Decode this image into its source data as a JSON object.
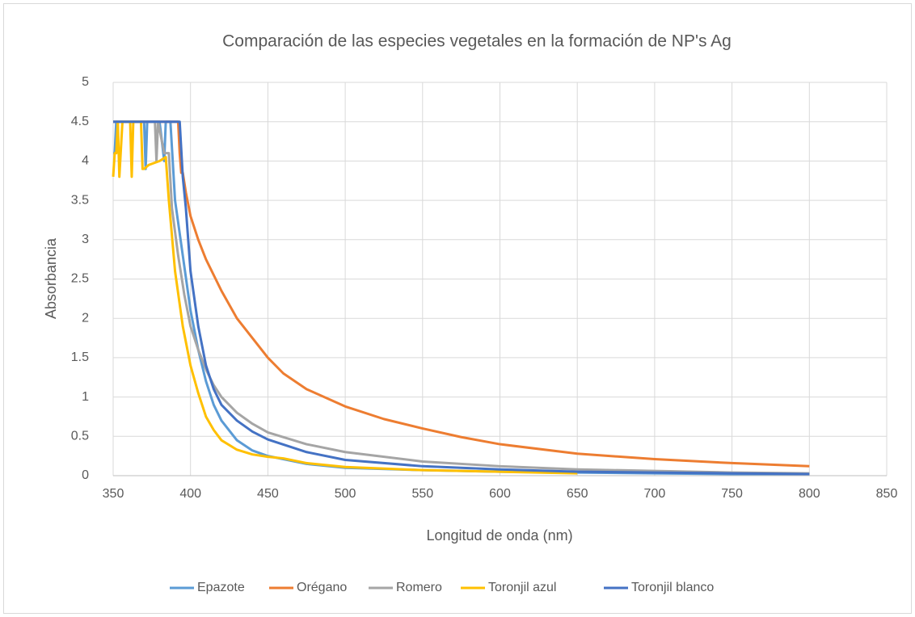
{
  "chart_data": {
    "type": "line",
    "title": "Comparación de las especies vegetales en la formación de NP's Ag",
    "xlabel": "Longitud de onda (nm)",
    "ylabel": "Absorbancia",
    "xlim": [
      350,
      850
    ],
    "xticks": [
      350,
      400,
      450,
      500,
      550,
      600,
      650,
      700,
      750,
      800,
      850
    ],
    "ylim": [
      0,
      5
    ],
    "yticks": [
      0,
      0.5,
      1,
      1.5,
      2,
      2.5,
      3,
      3.5,
      4,
      4.5,
      5
    ],
    "grid": true,
    "legend": "bottom",
    "series": [
      {
        "name": "Epazote",
        "color": "#5b9bd5",
        "x": [
          350,
          351,
          352,
          370,
          371,
          372,
          380,
          383,
          384,
          387,
          390,
          395,
          400,
          405,
          410,
          415,
          420,
          430,
          440,
          450,
          475,
          500,
          550,
          600,
          650,
          700,
          750,
          800
        ],
        "values": [
          4.1,
          4.1,
          4.5,
          4.5,
          3.9,
          4.5,
          4.5,
          4.0,
          4.5,
          4.5,
          3.5,
          2.8,
          2.1,
          1.6,
          1.2,
          0.9,
          0.7,
          0.45,
          0.32,
          0.25,
          0.15,
          0.1,
          0.07,
          0.05,
          0.04,
          0.03,
          0.02,
          0.02
        ]
      },
      {
        "name": "Orégano",
        "color": "#ed7d31",
        "x": [
          350,
          392,
          393,
          394,
          395,
          397,
          400,
          405,
          410,
          420,
          430,
          440,
          450,
          460,
          475,
          500,
          525,
          550,
          575,
          600,
          650,
          700,
          750,
          800
        ],
        "values": [
          4.5,
          4.5,
          4.1,
          3.85,
          3.85,
          3.6,
          3.3,
          3.0,
          2.75,
          2.35,
          2.0,
          1.75,
          1.5,
          1.3,
          1.1,
          0.88,
          0.72,
          0.6,
          0.49,
          0.4,
          0.28,
          0.21,
          0.16,
          0.12
        ]
      },
      {
        "name": "Romero",
        "color": "#a5a5a5",
        "x": [
          350,
          377,
          378,
          379,
          383,
          386,
          388,
          392,
          396,
          400,
          405,
          410,
          415,
          420,
          430,
          440,
          450,
          475,
          500,
          550,
          600,
          650,
          700,
          750,
          800
        ],
        "values": [
          4.5,
          4.5,
          4.0,
          4.5,
          4.1,
          4.1,
          3.4,
          2.8,
          2.3,
          1.9,
          1.6,
          1.35,
          1.15,
          1.0,
          0.8,
          0.66,
          0.55,
          0.4,
          0.3,
          0.18,
          0.12,
          0.08,
          0.06,
          0.04,
          0.03
        ]
      },
      {
        "name": "Toronjil azul",
        "color": "#ffc000",
        "x": [
          350,
          351,
          352,
          353,
          354,
          356,
          361,
          362,
          363,
          368,
          369,
          370,
          373,
          380,
          384,
          386,
          390,
          395,
          400,
          405,
          410,
          415,
          420,
          430,
          440,
          450,
          460,
          475,
          500,
          550,
          600,
          650
        ],
        "values": [
          3.8,
          4.1,
          4.1,
          4.5,
          3.8,
          4.5,
          4.5,
          3.8,
          4.5,
          4.5,
          3.9,
          3.9,
          3.95,
          4.0,
          4.05,
          3.5,
          2.6,
          1.9,
          1.4,
          1.05,
          0.75,
          0.58,
          0.45,
          0.33,
          0.27,
          0.24,
          0.22,
          0.16,
          0.11,
          0.07,
          0.05,
          0.03
        ]
      },
      {
        "name": "Toronjil blanco",
        "color": "#4472c4",
        "x": [
          350,
          393,
          395,
          397,
          400,
          405,
          410,
          415,
          420,
          430,
          440,
          450,
          475,
          500,
          550,
          600,
          650,
          700,
          750,
          800
        ],
        "values": [
          4.5,
          4.5,
          3.8,
          3.4,
          2.6,
          1.9,
          1.4,
          1.1,
          0.9,
          0.7,
          0.56,
          0.46,
          0.3,
          0.2,
          0.12,
          0.08,
          0.05,
          0.04,
          0.03,
          0.02
        ]
      }
    ]
  }
}
